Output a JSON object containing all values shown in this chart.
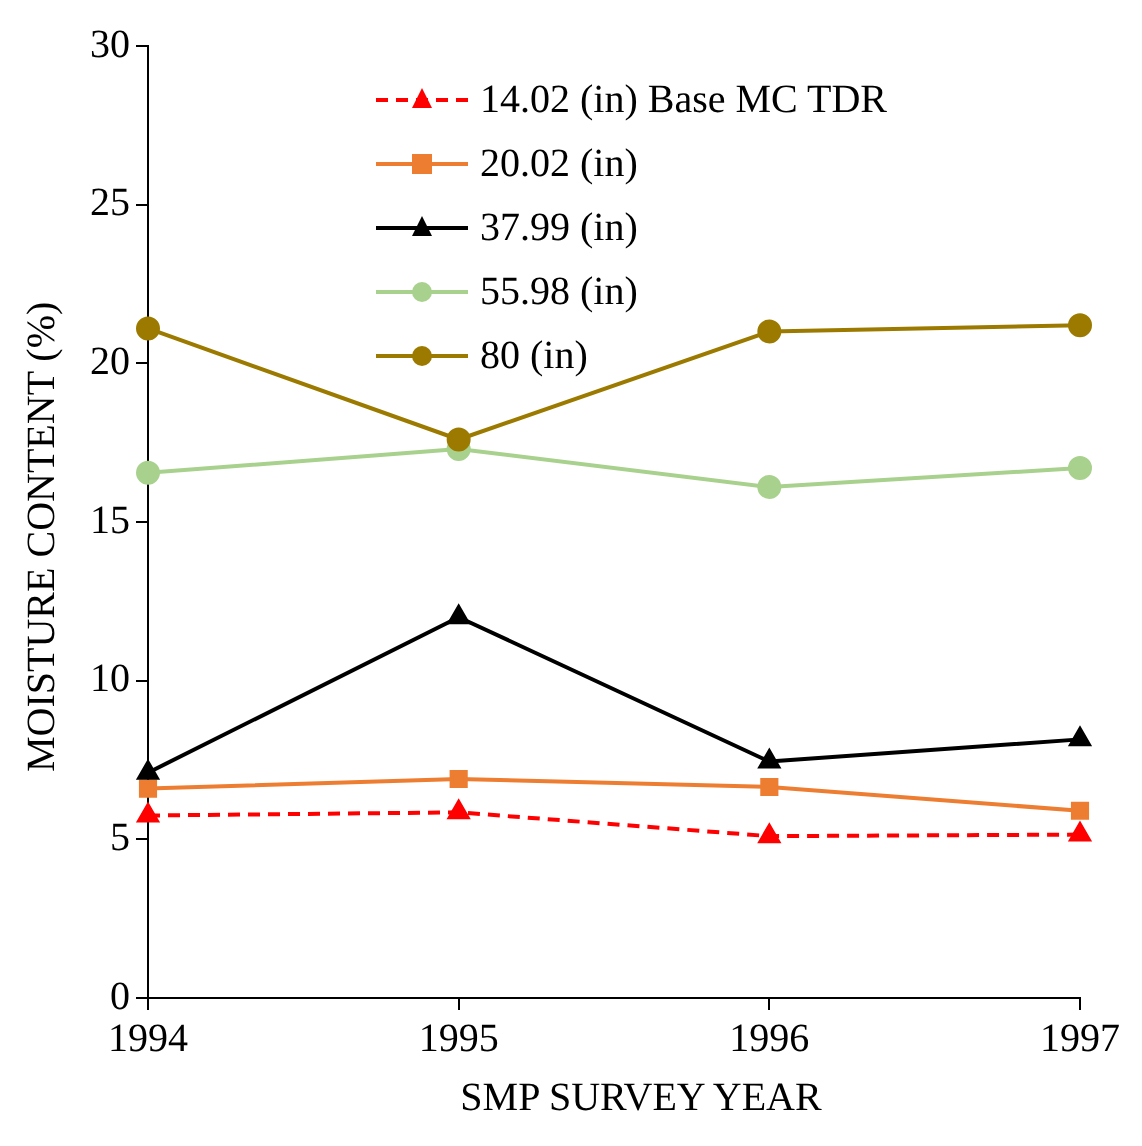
{
  "chart_data": {
    "type": "line",
    "xlabel": "SMP SURVEY  YEAR",
    "ylabel": "MOISTURE  CONTENT (%)",
    "x": [
      1994,
      1995,
      1996,
      1997
    ],
    "xlim": [
      1994,
      1997
    ],
    "xticks": [
      1994,
      1995,
      1996,
      1997
    ],
    "ylim": [
      0,
      30
    ],
    "yticks": [
      0,
      5,
      10,
      15,
      20,
      25,
      30
    ],
    "grid": false,
    "legend": "top",
    "series": [
      {
        "name": "14.02 (in) Base MC TDR",
        "color": "#ff0000",
        "values": [
          5.75,
          5.85,
          5.1,
          5.15
        ],
        "marker": "triangle",
        "line_style": "dashed"
      },
      {
        "name": "20.02 (in)",
        "color": "#ed7d31",
        "values": [
          6.6,
          6.9,
          6.65,
          5.9
        ],
        "marker": "square",
        "line_style": "solid"
      },
      {
        "name": "37.99 (in)",
        "color": "#000000",
        "values": [
          7.1,
          12.0,
          7.45,
          8.15
        ],
        "marker": "triangle",
        "line_style": "solid"
      },
      {
        "name": "55.98 (in)",
        "color": "#a9d18e",
        "values": [
          16.55,
          17.3,
          16.1,
          16.7
        ],
        "marker": "circle",
        "line_style": "solid"
      },
      {
        "name": "80 (in)",
        "color": "#9c7a00",
        "values": [
          21.1,
          17.6,
          21.0,
          21.2
        ],
        "marker": "circle",
        "line_style": "solid"
      }
    ]
  }
}
